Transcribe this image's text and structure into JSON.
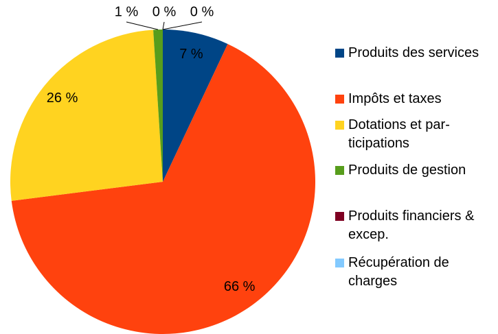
{
  "chart_data": {
    "type": "pie",
    "categories": [
      "Produits des services",
      "Impôts et taxes",
      "Dotations et par­ticipations",
      "Produits de ges­tion",
      "Produits financiers & excep.",
      "Récupération de charges"
    ],
    "values": [
      7,
      66,
      26,
      1,
      0,
      0
    ],
    "value_labels": [
      "7 %",
      "66 %",
      "26 %",
      "1 %",
      "0 %",
      "0 %"
    ],
    "colors": [
      "#004586",
      "#ff420e",
      "#ffd320",
      "#579d1c",
      "#7e0021",
      "#83caff"
    ],
    "legend": "right"
  }
}
